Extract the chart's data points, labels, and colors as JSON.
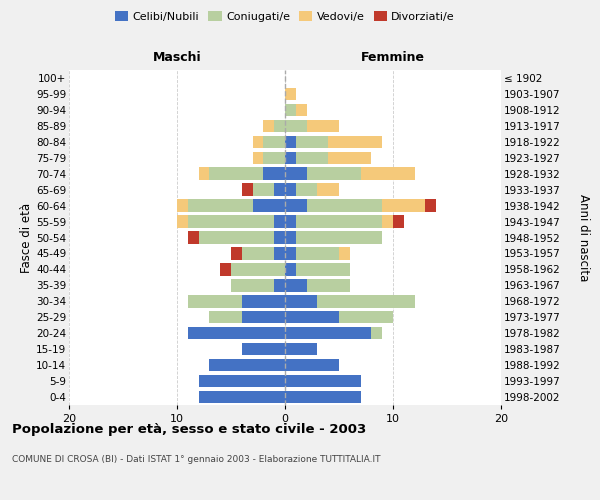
{
  "age_groups": [
    "0-4",
    "5-9",
    "10-14",
    "15-19",
    "20-24",
    "25-29",
    "30-34",
    "35-39",
    "40-44",
    "45-49",
    "50-54",
    "55-59",
    "60-64",
    "65-69",
    "70-74",
    "75-79",
    "80-84",
    "85-89",
    "90-94",
    "95-99",
    "100+"
  ],
  "birth_years": [
    "1998-2002",
    "1993-1997",
    "1988-1992",
    "1983-1987",
    "1978-1982",
    "1973-1977",
    "1968-1972",
    "1963-1967",
    "1958-1962",
    "1953-1957",
    "1948-1952",
    "1943-1947",
    "1938-1942",
    "1933-1937",
    "1928-1932",
    "1923-1927",
    "1918-1922",
    "1913-1917",
    "1908-1912",
    "1903-1907",
    "≤ 1902"
  ],
  "males_celibi": [
    8,
    8,
    7,
    4,
    9,
    4,
    4,
    1,
    0,
    1,
    1,
    1,
    3,
    1,
    2,
    0,
    0,
    0,
    0,
    0,
    0
  ],
  "males_coniugati": [
    0,
    0,
    0,
    0,
    0,
    3,
    5,
    4,
    5,
    3,
    7,
    8,
    6,
    2,
    5,
    2,
    2,
    1,
    0,
    0,
    0
  ],
  "males_vedovi": [
    0,
    0,
    0,
    0,
    0,
    0,
    0,
    0,
    0,
    0,
    0,
    1,
    1,
    0,
    1,
    1,
    1,
    1,
    0,
    0,
    0
  ],
  "males_divorziati": [
    0,
    0,
    0,
    0,
    0,
    0,
    0,
    0,
    1,
    1,
    1,
    0,
    0,
    1,
    0,
    0,
    0,
    0,
    0,
    0,
    0
  ],
  "fem_nubili": [
    7,
    7,
    5,
    3,
    8,
    5,
    3,
    2,
    1,
    1,
    1,
    1,
    2,
    1,
    2,
    1,
    1,
    0,
    0,
    0,
    0
  ],
  "fem_coniugate": [
    0,
    0,
    0,
    0,
    1,
    5,
    9,
    4,
    5,
    4,
    8,
    8,
    7,
    2,
    5,
    3,
    3,
    2,
    1,
    0,
    0
  ],
  "fem_vedove": [
    0,
    0,
    0,
    0,
    0,
    0,
    0,
    0,
    0,
    1,
    0,
    1,
    4,
    2,
    5,
    4,
    5,
    3,
    1,
    1,
    0
  ],
  "fem_divorziate": [
    0,
    0,
    0,
    0,
    0,
    0,
    0,
    0,
    0,
    0,
    0,
    1,
    1,
    0,
    0,
    0,
    0,
    0,
    0,
    0,
    0
  ],
  "color_celibi": "#4472c4",
  "color_coniugati": "#b8cfa0",
  "color_vedovi": "#f5c97a",
  "color_divorziati": "#c0392b",
  "xlim": 20,
  "bg_color": "#f0f0f0",
  "plot_bg": "#ffffff",
  "title": "Popolazione per età, sesso e stato civile - 2003",
  "subtitle": "COMUNE DI CROSA (BI) - Dati ISTAT 1° gennaio 2003 - Elaborazione TUTTITALIA.IT",
  "label_maschi": "Maschi",
  "label_femmine": "Femmine",
  "ylabel_left": "Fasce di età",
  "ylabel_right": "Anni di nascita",
  "legend_labels": [
    "Celibi/Nubili",
    "Coniugati/e",
    "Vedovi/e",
    "Divorziati/e"
  ]
}
